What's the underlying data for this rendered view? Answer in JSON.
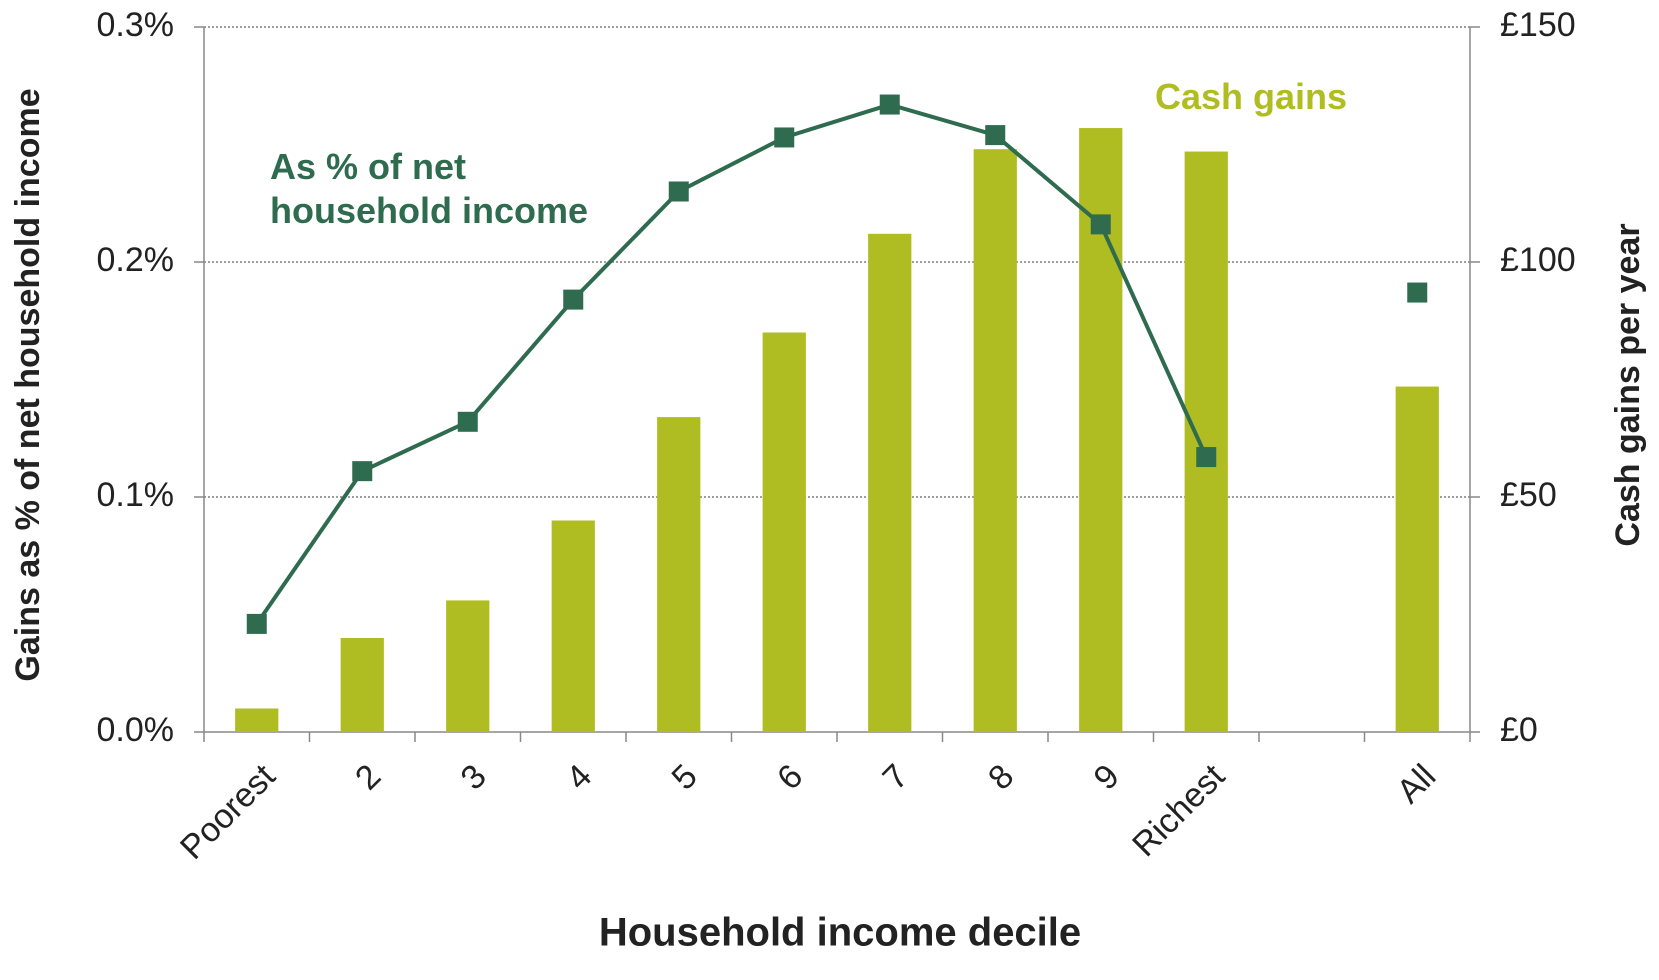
{
  "chart_data": {
    "type": "bar-line",
    "x_label": "Household income decile",
    "y_label": "Gains as % of net household income",
    "y2_label": "Cash gains per year",
    "categories": [
      "Poorest",
      "2",
      "3",
      "4",
      "5",
      "6",
      "7",
      "8",
      "9",
      "Richest",
      null,
      "All"
    ],
    "series": [
      {
        "name": "Cash gains",
        "type": "bar",
        "axis": "y2",
        "color": "#b0bd22",
        "values": [
          5,
          20,
          28,
          45,
          67,
          85,
          106,
          124,
          128.5,
          123.5,
          null,
          73.5
        ]
      },
      {
        "name": "As % of net household income",
        "type": "line",
        "axis": "y",
        "color": "#2e6b4f",
        "values": [
          0.046,
          0.111,
          0.132,
          0.184,
          0.23,
          0.253,
          0.267,
          0.254,
          0.216,
          0.117,
          null,
          0.187
        ]
      }
    ],
    "ylim": [
      0,
      0.3
    ],
    "yticks": [
      {
        "value": 0,
        "label": "0.0%"
      },
      {
        "value": 0.1,
        "label": "0.1%"
      },
      {
        "value": 0.2,
        "label": "0.2%"
      },
      {
        "value": 0.3,
        "label": "0.3%"
      }
    ],
    "y2lim": [
      0,
      150
    ],
    "y2ticks": [
      {
        "value": 0,
        "label": "£0"
      },
      {
        "value": 50,
        "label": "£50"
      },
      {
        "value": 100,
        "label": "£100"
      },
      {
        "value": 150,
        "label": "£150"
      }
    ],
    "grid": true
  }
}
